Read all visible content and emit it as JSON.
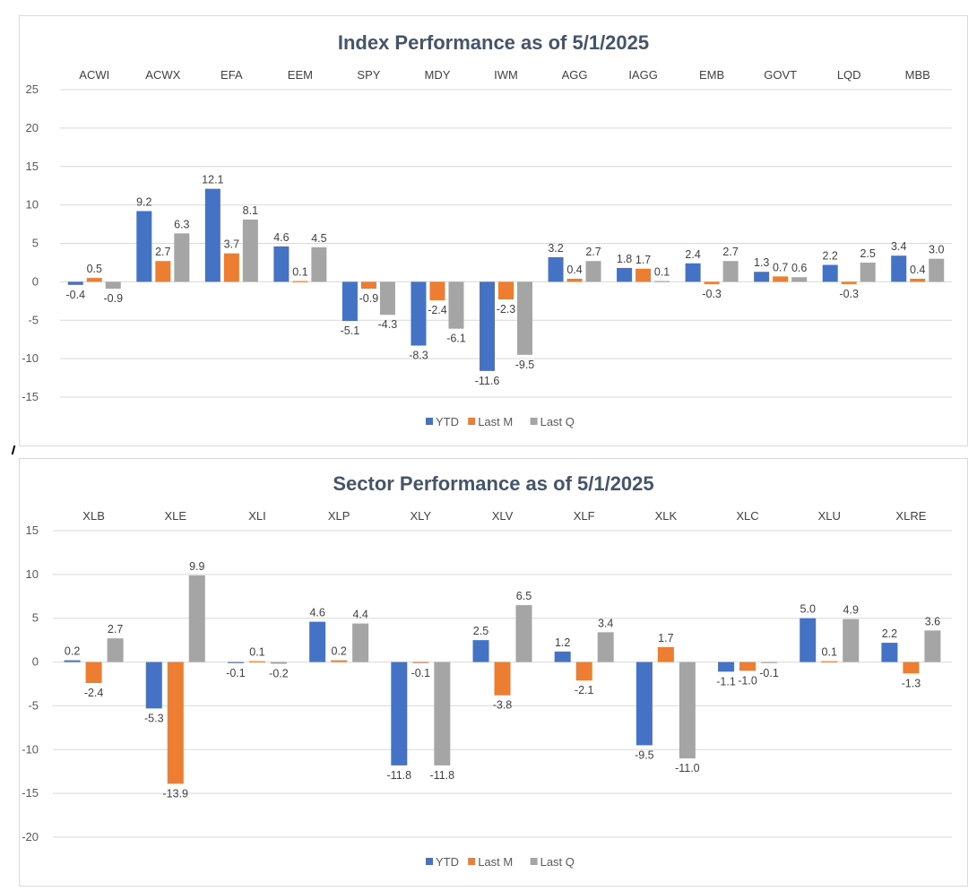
{
  "colors": {
    "YTD": "#4472c4",
    "Last M": "#ed7d31",
    "Last Q": "#a5a5a5",
    "grid": "#d9d9d9"
  },
  "chart_data": [
    {
      "type": "bar",
      "title": "Index Performance as of 5/1/2025",
      "categories": [
        "ACWI",
        "ACWX",
        "EFA",
        "EEM",
        "SPY",
        "MDY",
        "IWM",
        "AGG",
        "IAGG",
        "EMB",
        "GOVT",
        "LQD",
        "MBB"
      ],
      "series": [
        {
          "name": "YTD",
          "values": [
            -0.4,
            9.2,
            12.1,
            4.6,
            -5.1,
            -8.3,
            -11.6,
            3.2,
            1.8,
            2.4,
            1.3,
            2.2,
            3.4
          ]
        },
        {
          "name": "Last M",
          "values": [
            0.5,
            2.7,
            3.7,
            0.1,
            -0.9,
            -2.4,
            -2.3,
            0.4,
            1.7,
            -0.3,
            0.7,
            -0.3,
            0.4
          ]
        },
        {
          "name": "Last Q",
          "values": [
            -0.9,
            6.3,
            8.1,
            4.5,
            -4.3,
            -6.1,
            -9.5,
            2.7,
            0.1,
            2.7,
            0.6,
            2.5,
            3.0
          ]
        }
      ],
      "ylim": [
        -15,
        25
      ],
      "yticks": [
        25,
        20,
        15,
        10,
        5,
        0,
        -5,
        -10,
        -15
      ],
      "grid": true,
      "legend": "bottom"
    },
    {
      "type": "bar",
      "title": "Sector Performance as of 5/1/2025",
      "categories": [
        "XLB",
        "XLE",
        "XLI",
        "XLP",
        "XLY",
        "XLV",
        "XLF",
        "XLK",
        "XLC",
        "XLU",
        "XLRE"
      ],
      "series": [
        {
          "name": "YTD",
          "values": [
            0.2,
            -5.3,
            -0.1,
            4.6,
            -11.8,
            2.5,
            1.2,
            -9.5,
            -1.1,
            5.0,
            2.2
          ]
        },
        {
          "name": "Last M",
          "values": [
            -2.4,
            -13.9,
            0.1,
            0.2,
            -0.1,
            -3.8,
            -2.1,
            1.7,
            -1.0,
            0.1,
            -1.3
          ]
        },
        {
          "name": "Last Q",
          "values": [
            2.7,
            9.9,
            -0.2,
            4.4,
            -11.8,
            6.5,
            3.4,
            -11.0,
            -0.1,
            4.9,
            3.6
          ]
        }
      ],
      "ylim": [
        -20,
        15
      ],
      "yticks": [
        15,
        10,
        5,
        0,
        -5,
        -10,
        -15,
        -20
      ],
      "grid": true,
      "legend": "bottom"
    }
  ]
}
